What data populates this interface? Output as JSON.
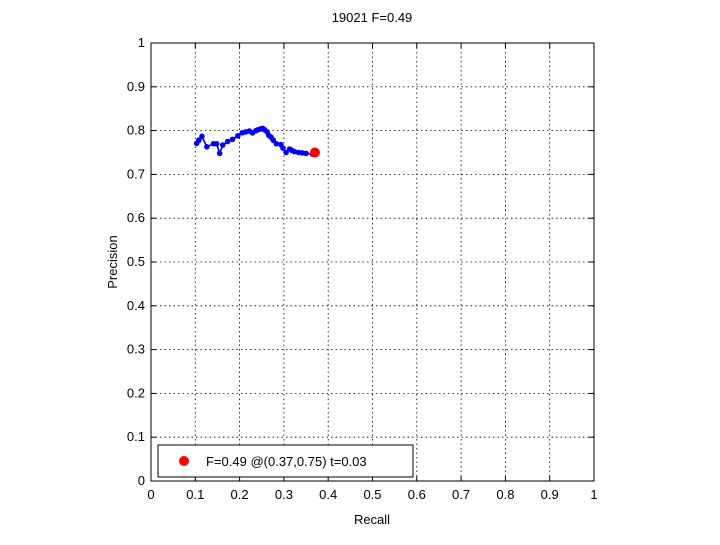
{
  "chart_data": {
    "type": "line",
    "title": "19021 F=0.49",
    "xlabel": "Recall",
    "ylabel": "Precision",
    "xlim": [
      0,
      1
    ],
    "ylim": [
      0,
      1
    ],
    "xticks": [
      "0",
      "0.1",
      "0.2",
      "0.3",
      "0.4",
      "0.5",
      "0.6",
      "0.7",
      "0.8",
      "0.9",
      "1"
    ],
    "yticks": [
      "0",
      "0.1",
      "0.2",
      "0.3",
      "0.4",
      "0.5",
      "0.6",
      "0.7",
      "0.8",
      "0.9",
      "1"
    ],
    "grid": true,
    "legend": {
      "placement": "bottom-left",
      "entries": [
        "F=0.49 @(0.37,0.75) t=0.03"
      ]
    },
    "colors": {
      "series": "#0000ff",
      "best": "#ff0000"
    },
    "series": [
      {
        "x": [
          0.103,
          0.108,
          0.115,
          0.126,
          0.141,
          0.148,
          0.155,
          0.162,
          0.173,
          0.184,
          0.196,
          0.206,
          0.214,
          0.222,
          0.229,
          0.237,
          0.242,
          0.248,
          0.252,
          0.256,
          0.262,
          0.266,
          0.271,
          0.276,
          0.283,
          0.293,
          0.298,
          0.305,
          0.313,
          0.318,
          0.324,
          0.333,
          0.341,
          0.35,
          0.365
        ],
        "y": [
          0.771,
          0.778,
          0.787,
          0.763,
          0.77,
          0.77,
          0.748,
          0.767,
          0.775,
          0.78,
          0.788,
          0.795,
          0.797,
          0.799,
          0.795,
          0.8,
          0.802,
          0.804,
          0.805,
          0.802,
          0.797,
          0.789,
          0.785,
          0.778,
          0.77,
          0.768,
          0.76,
          0.75,
          0.758,
          0.755,
          0.752,
          0.75,
          0.749,
          0.748,
          0.746
        ]
      }
    ],
    "best_point": {
      "x": 0.37,
      "y": 0.75
    }
  }
}
